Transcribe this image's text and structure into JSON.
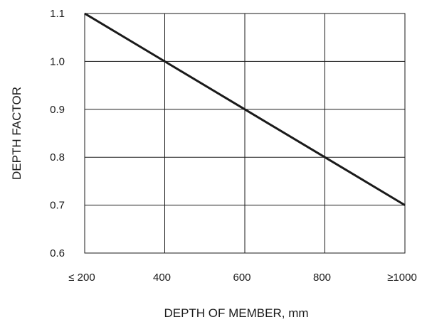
{
  "chart_data": {
    "type": "line",
    "title": "",
    "xlabel": "DEPTH OF MEMBER, mm",
    "ylabel": "DEPTH FACTOR",
    "x_ticks": [
      200,
      400,
      600,
      800,
      1000
    ],
    "x_tick_labels": [
      "≤ 200",
      "400",
      "600",
      "800",
      "≥1000"
    ],
    "y_ticks": [
      0.6,
      0.7,
      0.8,
      0.9,
      1.0,
      1.1
    ],
    "y_tick_labels": [
      "0.6",
      "0.7",
      "0.8",
      "0.9",
      "1.0",
      "1.1"
    ],
    "xlim": [
      200,
      1000
    ],
    "ylim": [
      0.6,
      1.1
    ],
    "grid": true,
    "legend": "none",
    "series": [
      {
        "x": [
          200,
          400,
          600,
          800,
          1000
        ],
        "y": [
          1.1,
          1.0,
          0.9,
          0.8,
          0.7
        ],
        "color": "#1a1a1a"
      }
    ]
  }
}
